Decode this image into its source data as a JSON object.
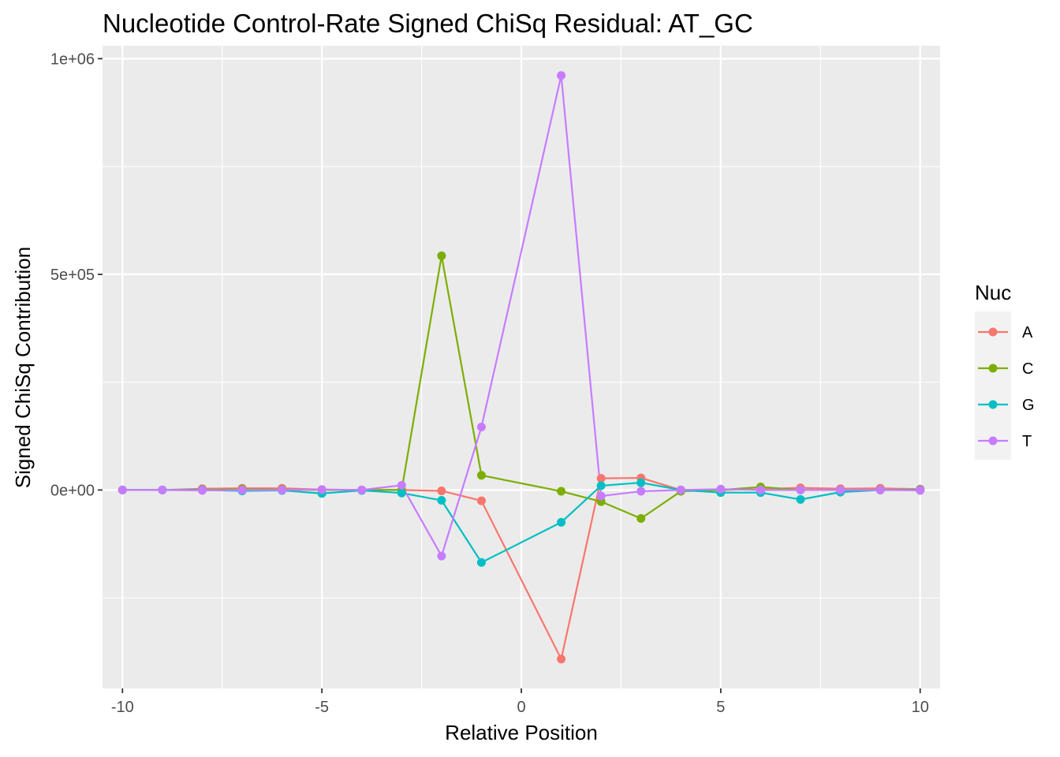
{
  "chart_data": {
    "type": "line",
    "title": "Nucleotide Control-Rate Signed ChiSq Residual: AT_GC",
    "xlabel": "Relative Position",
    "ylabel": "Signed ChiSq Contribution",
    "x": [
      -10,
      -9,
      -8,
      -7,
      -6,
      -5,
      -4,
      -3,
      -2,
      -1,
      1,
      2,
      3,
      4,
      5,
      6,
      7,
      8,
      9,
      10
    ],
    "xlim": [
      -10.5,
      10.5
    ],
    "ylim": [
      -460000,
      1030000
    ],
    "x_ticks": [
      -10,
      -5,
      0,
      5,
      10
    ],
    "x_tick_labels": [
      "-10",
      "-5",
      "0",
      "5",
      "10"
    ],
    "y_ticks": [
      0,
      500000,
      1000000
    ],
    "y_tick_labels": [
      "0e+00",
      "5e+05",
      "1e+06"
    ],
    "grid": true,
    "legend": {
      "title": "Nuc",
      "position": "right"
    },
    "series": [
      {
        "name": "A",
        "color": "#F8766D",
        "values": [
          0,
          0,
          3000,
          4000,
          4000,
          1000,
          0,
          0,
          -2000,
          -25000,
          -392000,
          27000,
          28000,
          0,
          0,
          2000,
          5000,
          3000,
          4000,
          2000
        ]
      },
      {
        "name": "C",
        "color": "#7CAE00",
        "values": [
          0,
          0,
          0,
          2000,
          1000,
          0,
          0,
          0,
          543000,
          34000,
          -3000,
          -27000,
          -66000,
          -3000,
          0,
          7000,
          0,
          0,
          0,
          0
        ]
      },
      {
        "name": "G",
        "color": "#00BFC4",
        "values": [
          0,
          0,
          0,
          -2000,
          -1000,
          -8000,
          -1000,
          -7000,
          -24000,
          -168000,
          -75000,
          10000,
          17000,
          0,
          -6000,
          -6000,
          -22000,
          -5000,
          0,
          0
        ]
      },
      {
        "name": "T",
        "color": "#C77CFF",
        "values": [
          0,
          0,
          -1000,
          0,
          0,
          1000,
          0,
          11000,
          -153000,
          146000,
          961000,
          -14000,
          -3000,
          0,
          2000,
          0,
          0,
          0,
          0,
          -1000
        ]
      }
    ]
  }
}
